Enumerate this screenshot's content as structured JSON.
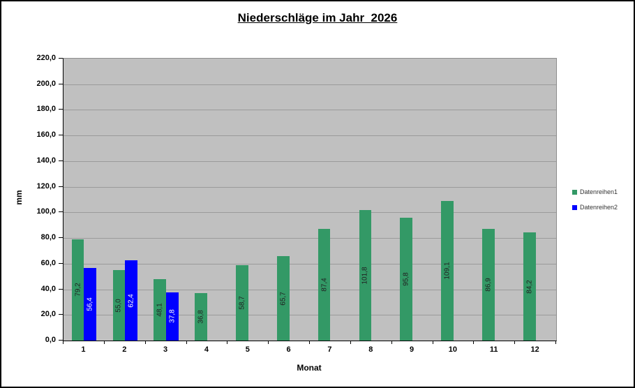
{
  "window": {
    "background": "#ffffff",
    "border_color": "#000000"
  },
  "chart_data": {
    "type": "bar",
    "title": "Niederschläge im Jahr  2026",
    "xlabel": "Monat",
    "ylabel": "mm",
    "categories": [
      1,
      2,
      3,
      4,
      5,
      6,
      7,
      8,
      9,
      10,
      11,
      12
    ],
    "series": [
      {
        "name": "Datenreihen1",
        "color": "#339966",
        "label_color": "#1f1f1f",
        "values": [
          79.2,
          55.0,
          48.1,
          36.8,
          58.7,
          65.7,
          87.4,
          101.8,
          95.8,
          109.1,
          86.9,
          84.2
        ]
      },
      {
        "name": "Datenreihen2",
        "color": "#0000ff",
        "label_color": "#ffffff",
        "values": [
          56.4,
          62.4,
          37.8,
          null,
          null,
          null,
          null,
          null,
          null,
          null,
          null,
          null
        ]
      }
    ],
    "ylim": [
      0,
      220
    ],
    "ytick_step": 20,
    "decimal_separator": ",",
    "grid": true,
    "gridline_color": "#9a9a9a",
    "plot_bg": "#c0c0c0",
    "legend_position": "right",
    "data_labels": "rotated-inside-center"
  }
}
